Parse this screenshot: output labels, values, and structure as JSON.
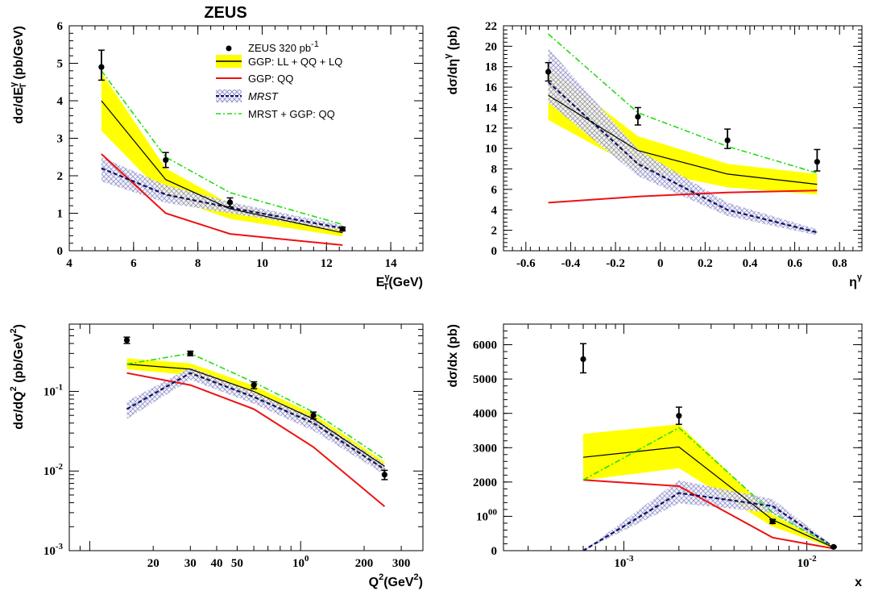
{
  "figure_title": "ZEUS",
  "legend": {
    "data": "ZEUS 320 pb",
    "data_sup": "-1",
    "full": "GGP: LL + QQ + LQ",
    "qq": "GGP: QQ",
    "mrst": "MRST",
    "mrst_qq": "MRST + GGP: QQ"
  },
  "colors": {
    "band": "#ffff00",
    "full_line": "#000000",
    "qq_line": "#ee1111",
    "mrst_line": "#101060",
    "mrst_hatch": "#8a8ac8",
    "mrst_qq_line": "#22dd11",
    "data": "#000000"
  },
  "chart_data": [
    {
      "type": "line",
      "id": "et",
      "xscale": "linear",
      "yscale": "linear",
      "xlim": [
        4,
        15
      ],
      "ylim": [
        0,
        6
      ],
      "xticks": [
        4,
        6,
        8,
        10,
        12,
        14
      ],
      "xticklabels": [
        "4",
        "6",
        "8",
        "10",
        "12",
        "14"
      ],
      "yticks": [
        0,
        1,
        2,
        3,
        4,
        5,
        6
      ],
      "yticklabels": [
        "0",
        "1",
        "2",
        "3",
        "4",
        "5",
        "6"
      ],
      "ylabel": {
        "main": "dσ/dE",
        "sub": "T",
        "sup": "γ",
        "unit": " (pb/GeV)"
      },
      "xlabel": {
        "main": "E",
        "sub": "T",
        "sup": "γ",
        "unit": "(GeV)"
      },
      "x": [
        5,
        7,
        9,
        12.5
      ],
      "data_points": {
        "y": [
          4.9,
          2.42,
          1.29,
          0.58
        ],
        "err_lo": [
          0.35,
          0.2,
          0.12,
          0.05
        ],
        "err_hi": [
          0.45,
          0.2,
          0.12,
          0.05
        ]
      },
      "full": {
        "y": [
          4.0,
          1.9,
          1.12,
          0.48
        ],
        "lo": [
          3.2,
          1.45,
          0.85,
          0.38
        ],
        "hi": [
          4.75,
          2.2,
          1.25,
          0.55
        ]
      },
      "qq": {
        "y": [
          2.58,
          1.0,
          0.45,
          0.15
        ]
      },
      "mrst": {
        "y": [
          2.2,
          1.5,
          1.15,
          0.6
        ],
        "lo": [
          1.85,
          1.28,
          1.0,
          0.53
        ],
        "hi": [
          2.5,
          1.75,
          1.3,
          0.68
        ]
      },
      "mrst_qq": {
        "y": [
          4.8,
          2.5,
          1.55,
          0.7
        ]
      }
    },
    {
      "type": "line",
      "id": "eta",
      "xscale": "linear",
      "yscale": "linear",
      "xlim": [
        -0.7,
        0.9
      ],
      "ylim": [
        0,
        22
      ],
      "xticks": [
        -0.6,
        -0.4,
        -0.2,
        0,
        0.2,
        0.4,
        0.6,
        0.8
      ],
      "xticklabels": [
        "-0.6",
        "-0.4",
        "-0.2",
        "0",
        "0.2",
        "0.4",
        "0.6",
        "0.8"
      ],
      "yticks": [
        0,
        2,
        4,
        6,
        8,
        10,
        12,
        14,
        16,
        18,
        20,
        22
      ],
      "yticklabels": [
        "0",
        "2",
        "4",
        "6",
        "8",
        "10",
        "12",
        "14",
        "16",
        "18",
        "20",
        "22"
      ],
      "ylabel": {
        "main": "dσ/dη",
        "sub": "",
        "sup": "γ",
        "unit": " (pb)"
      },
      "xlabel": {
        "main": "η",
        "sub": "",
        "sup": "γ",
        "unit": ""
      },
      "x": [
        -0.5,
        -0.1,
        0.3,
        0.7
      ],
      "data_points": {
        "y": [
          17.5,
          13.1,
          10.8,
          8.7
        ],
        "err_lo": [
          0.9,
          0.8,
          0.8,
          0.9
        ],
        "err_hi": [
          0.9,
          0.9,
          1.1,
          1.2
        ]
      },
      "full": {
        "y": [
          15.2,
          9.8,
          7.5,
          6.5
        ],
        "lo": [
          12.8,
          8.0,
          6.2,
          5.5
        ],
        "hi": [
          18.0,
          11.2,
          8.5,
          7.5
        ]
      },
      "qq": {
        "y": [
          4.7,
          5.3,
          5.7,
          5.9
        ]
      },
      "mrst": {
        "y": [
          16.5,
          8.5,
          4.0,
          1.8
        ],
        "lo": [
          14.5,
          7.3,
          3.4,
          1.5
        ],
        "hi": [
          19.8,
          9.9,
          4.7,
          2.1
        ]
      },
      "mrst_qq": {
        "y": [
          21.2,
          13.5,
          10.2,
          7.6
        ]
      }
    },
    {
      "type": "line",
      "id": "q2",
      "xscale": "log",
      "yscale": "log",
      "xlim": [
        8,
        380
      ],
      "ylim": [
        0.001,
        0.7
      ],
      "xticks": [
        20,
        30,
        40,
        50,
        100,
        200,
        300
      ],
      "xticklabels": [
        "20",
        "30",
        "40",
        "50",
        "100",
        "200",
        "300"
      ],
      "yticks": [
        0.001,
        0.01,
        0.1
      ],
      "yticklabels": [
        "10-3",
        "10-2",
        "10-1"
      ],
      "ylabel": {
        "main": "dσ/dQ",
        "sub": "",
        "sup": "2",
        "unit": " (pb/GeV",
        "unit_sup": "2",
        "unit_end": ")"
      },
      "xlabel": {
        "main": "Q",
        "sub": "",
        "sup": "2",
        "unit": "(GeV",
        "unit_sup": "2",
        "unit_end": ")"
      },
      "x": [
        15,
        30,
        60,
        115,
        250
      ],
      "data_points": {
        "y": [
          0.44,
          0.3,
          0.12,
          0.05,
          0.009
        ],
        "err_lo": [
          0.04,
          0.02,
          0.012,
          0.005,
          0.0012
        ],
        "err_hi": [
          0.04,
          0.02,
          0.012,
          0.005,
          0.0012
        ]
      },
      "full": {
        "y": [
          0.22,
          0.19,
          0.1,
          0.045,
          0.0115
        ],
        "lo": [
          0.19,
          0.16,
          0.085,
          0.038,
          0.0098
        ],
        "hi": [
          0.26,
          0.225,
          0.118,
          0.052,
          0.013
        ]
      },
      "qq": {
        "y": [
          0.17,
          0.12,
          0.06,
          0.02,
          0.0036
        ]
      },
      "mrst": {
        "y": [
          0.06,
          0.17,
          0.085,
          0.04,
          0.0105
        ],
        "lo": [
          0.045,
          0.14,
          0.07,
          0.032,
          0.009
        ],
        "hi": [
          0.075,
          0.2,
          0.1,
          0.047,
          0.0122
        ]
      },
      "mrst_qq": {
        "y": [
          0.22,
          0.3,
          0.13,
          0.055,
          0.014
        ]
      }
    },
    {
      "type": "line",
      "id": "xbj",
      "xscale": "log",
      "yscale": "linear",
      "xlim": [
        0.00022,
        0.02
      ],
      "ylim": [
        0,
        6600
      ],
      "xticks": [
        0.001,
        0.01
      ],
      "xticklabels": [
        "10-3",
        "10-2"
      ],
      "yticks": [
        0,
        1000,
        2000,
        3000,
        4000,
        5000,
        6000
      ],
      "yticklabels": [
        "0",
        "1000",
        "2000",
        "3000",
        "4000",
        "5000",
        "6000"
      ],
      "ylabel": {
        "main": "dσ/dx",
        "sub": "",
        "sup": "",
        "unit": " (pb)"
      },
      "xlabel": {
        "main": "x",
        "sub": "",
        "sup": "",
        "unit": ""
      },
      "x": [
        0.0006,
        0.002,
        0.0065,
        0.014
      ],
      "data_points": {
        "y": [
          5580,
          3930,
          850,
          110
        ],
        "err_lo": [
          400,
          250,
          60,
          20
        ],
        "err_hi": [
          450,
          250,
          60,
          20
        ]
      },
      "full": {
        "y": [
          2720,
          3020,
          900,
          90
        ],
        "lo": [
          2050,
          2400,
          700,
          70
        ],
        "hi": [
          3400,
          3680,
          1050,
          110
        ]
      },
      "qq": {
        "y": [
          2060,
          1880,
          380,
          60
        ]
      },
      "mrst": {
        "y": [
          0,
          1680,
          1300,
          100
        ],
        "lo": [
          0,
          1380,
          1100,
          80
        ],
        "hi": [
          0,
          2050,
          1500,
          130
        ]
      },
      "mrst_qq": {
        "y": [
          2060,
          3580,
          1100,
          100
        ]
      }
    }
  ]
}
